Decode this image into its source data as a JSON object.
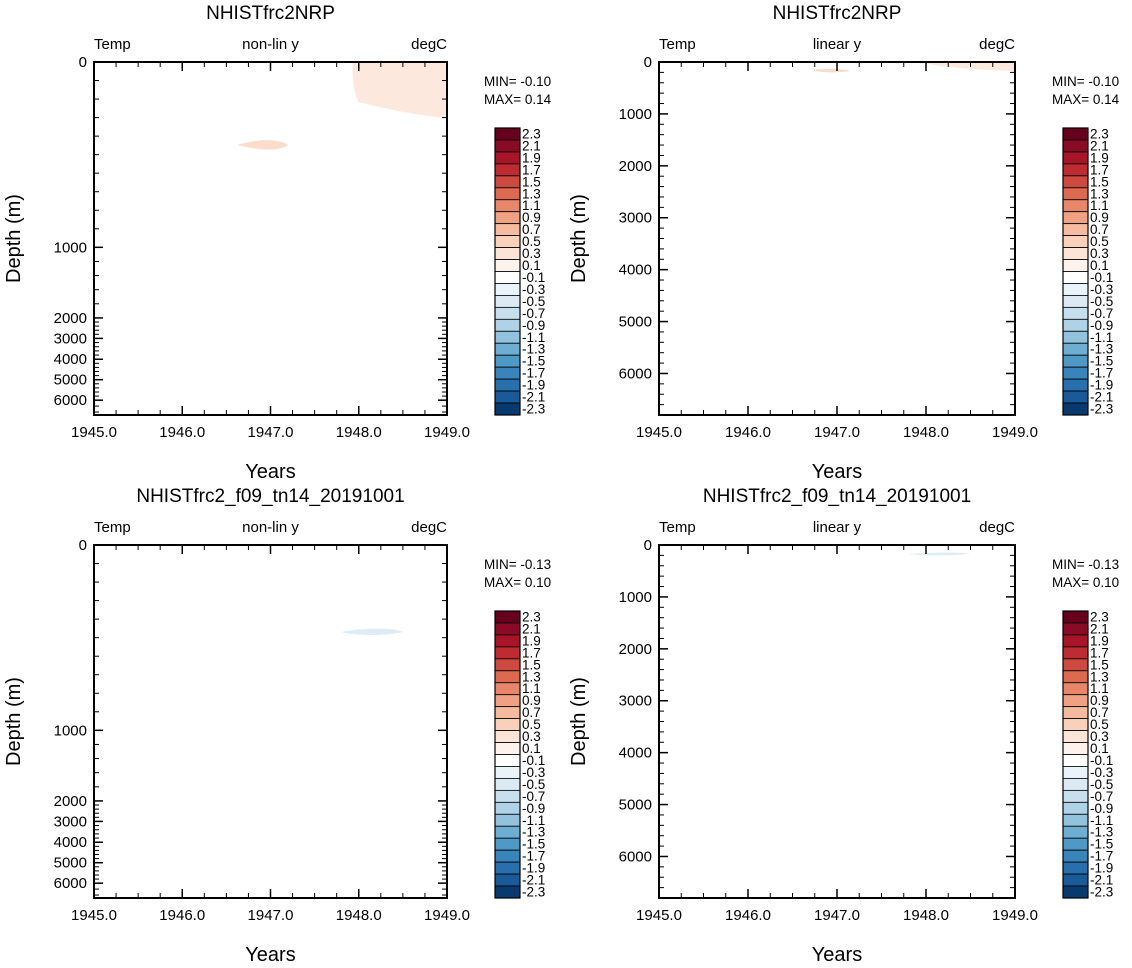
{
  "figure_title": "",
  "chart_data": [
    {
      "type": "heatmap",
      "title": "NHISTfrc2NRP",
      "top_left_label": "Temp",
      "top_center_label": "non-lin y",
      "top_right_label": "degC",
      "xlabel": "Years",
      "ylabel": "Depth (m)",
      "xlim": [
        1945.0,
        1949.0
      ],
      "xticks": [
        "1945.0",
        "1946.0",
        "1947.0",
        "1948.0",
        "1949.0"
      ],
      "yscale": "nonlinear",
      "ylim": [
        0,
        6500
      ],
      "yticks": [
        "0",
        "1000",
        "2000",
        "3000",
        "4000",
        "5000",
        "6000"
      ],
      "min_label": "MIN= -0.10",
      "max_label": "MAX=  0.14",
      "features": [
        {
          "kind": "positive",
          "value": 0.1,
          "desc": "warm anomaly near surface, 1947.9-1949.0"
        },
        {
          "kind": "positive",
          "value": 0.1,
          "desc": "small warm patch near 1946.6-1947.2"
        }
      ]
    },
    {
      "type": "heatmap",
      "title": "NHISTfrc2NRP",
      "top_left_label": "Temp",
      "top_center_label": "linear y",
      "top_right_label": "degC",
      "xlabel": "Years",
      "ylabel": "Depth (m)",
      "xlim": [
        1945.0,
        1949.0
      ],
      "xticks": [
        "1945.0",
        "1946.0",
        "1947.0",
        "1948.0",
        "1949.0"
      ],
      "yscale": "linear",
      "ylim": [
        0,
        6800
      ],
      "yticks": [
        "0",
        "1000",
        "2000",
        "3000",
        "4000",
        "5000",
        "6000"
      ],
      "min_label": "MIN= -0.10",
      "max_label": "MAX=  0.14",
      "features": [
        {
          "kind": "positive",
          "value": 0.1,
          "desc": "thin warm layer near surface"
        }
      ]
    },
    {
      "type": "heatmap",
      "title": "NHISTfrc2_f09_tn14_20191001",
      "top_left_label": "Temp",
      "top_center_label": "non-lin y",
      "top_right_label": "degC",
      "xlabel": "Years",
      "ylabel": "Depth (m)",
      "xlim": [
        1945.0,
        1949.0
      ],
      "xticks": [
        "1945.0",
        "1946.0",
        "1947.0",
        "1948.0",
        "1949.0"
      ],
      "yscale": "nonlinear",
      "ylim": [
        0,
        6500
      ],
      "yticks": [
        "0",
        "1000",
        "2000",
        "3000",
        "4000",
        "5000",
        "6000"
      ],
      "min_label": "MIN= -0.13",
      "max_label": "MAX=  0.10",
      "features": [
        {
          "kind": "negative",
          "value": -0.1,
          "desc": "small cool patch near 1948.0"
        }
      ]
    },
    {
      "type": "heatmap",
      "title": "NHISTfrc2_f09_tn14_20191001",
      "top_left_label": "Temp",
      "top_center_label": "linear y",
      "top_right_label": "degC",
      "xlabel": "Years",
      "ylabel": "Depth (m)",
      "xlim": [
        1945.0,
        1949.0
      ],
      "xticks": [
        "1945.0",
        "1946.0",
        "1947.0",
        "1948.0",
        "1949.0"
      ],
      "yscale": "linear",
      "ylim": [
        0,
        6800
      ],
      "yticks": [
        "0",
        "1000",
        "2000",
        "3000",
        "4000",
        "5000",
        "6000"
      ],
      "min_label": "MIN= -0.13",
      "max_label": "MAX=  0.10",
      "features": [
        {
          "kind": "negative",
          "value": -0.1,
          "desc": "thin cool layer near surface around 1948"
        }
      ]
    }
  ],
  "colorbar": {
    "levels": [
      "2.3",
      "2.1",
      "1.9",
      "1.7",
      "1.5",
      "1.3",
      "1.1",
      "0.9",
      "0.7",
      "0.5",
      "0.3",
      "0.1",
      "-0.1",
      "-0.3",
      "-0.5",
      "-0.7",
      "-0.9",
      "-1.1",
      "-1.3",
      "-1.5",
      "-1.7",
      "-1.9",
      "-2.1",
      "-2.3"
    ],
    "colors": [
      "#67001f",
      "#8a0b25",
      "#a81529",
      "#bd2b33",
      "#cd4a40",
      "#dc6a50",
      "#e8866a",
      "#f0a184",
      "#f5bb9f",
      "#f9d1bb",
      "#fce4d6",
      "#fdf2ec",
      "#ffffff",
      "#eaf3f9",
      "#dbeaf3",
      "#c8dfed",
      "#b0d2e6",
      "#92c2dd",
      "#6eaed2",
      "#4f99c6",
      "#3984bb",
      "#2870ad",
      "#1a5a99",
      "#083a70"
    ]
  },
  "colors": {
    "warm_fill": "#fce8dc",
    "warm_fill2": "#fbdcca",
    "cool_fill": "#deecf6"
  }
}
